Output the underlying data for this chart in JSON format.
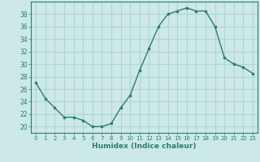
{
  "x": [
    0,
    1,
    2,
    3,
    4,
    5,
    6,
    7,
    8,
    9,
    10,
    11,
    12,
    13,
    14,
    15,
    16,
    17,
    18,
    19,
    20,
    21,
    22,
    23
  ],
  "y": [
    27,
    24.5,
    23,
    21.5,
    21.5,
    21,
    20,
    20,
    20.5,
    23,
    25,
    29,
    32.5,
    36,
    38,
    38.5,
    39,
    38.5,
    38.5,
    36,
    31,
    30,
    29.5,
    28.5
  ],
  "line_color": "#2e7d6e",
  "marker_color": "#2e7d6e",
  "bg_color": "#cce8e8",
  "grid_color": "#b0d4d4",
  "axis_color": "#2e7d6e",
  "xlabel": "Humidex (Indice chaleur)",
  "xlim": [
    -0.5,
    23.5
  ],
  "ylim": [
    19,
    40
  ],
  "yticks": [
    20,
    22,
    24,
    26,
    28,
    30,
    32,
    34,
    36,
    38
  ],
  "xticks": [
    0,
    1,
    2,
    3,
    4,
    5,
    6,
    7,
    8,
    9,
    10,
    11,
    12,
    13,
    14,
    15,
    16,
    17,
    18,
    19,
    20,
    21,
    22,
    23
  ]
}
